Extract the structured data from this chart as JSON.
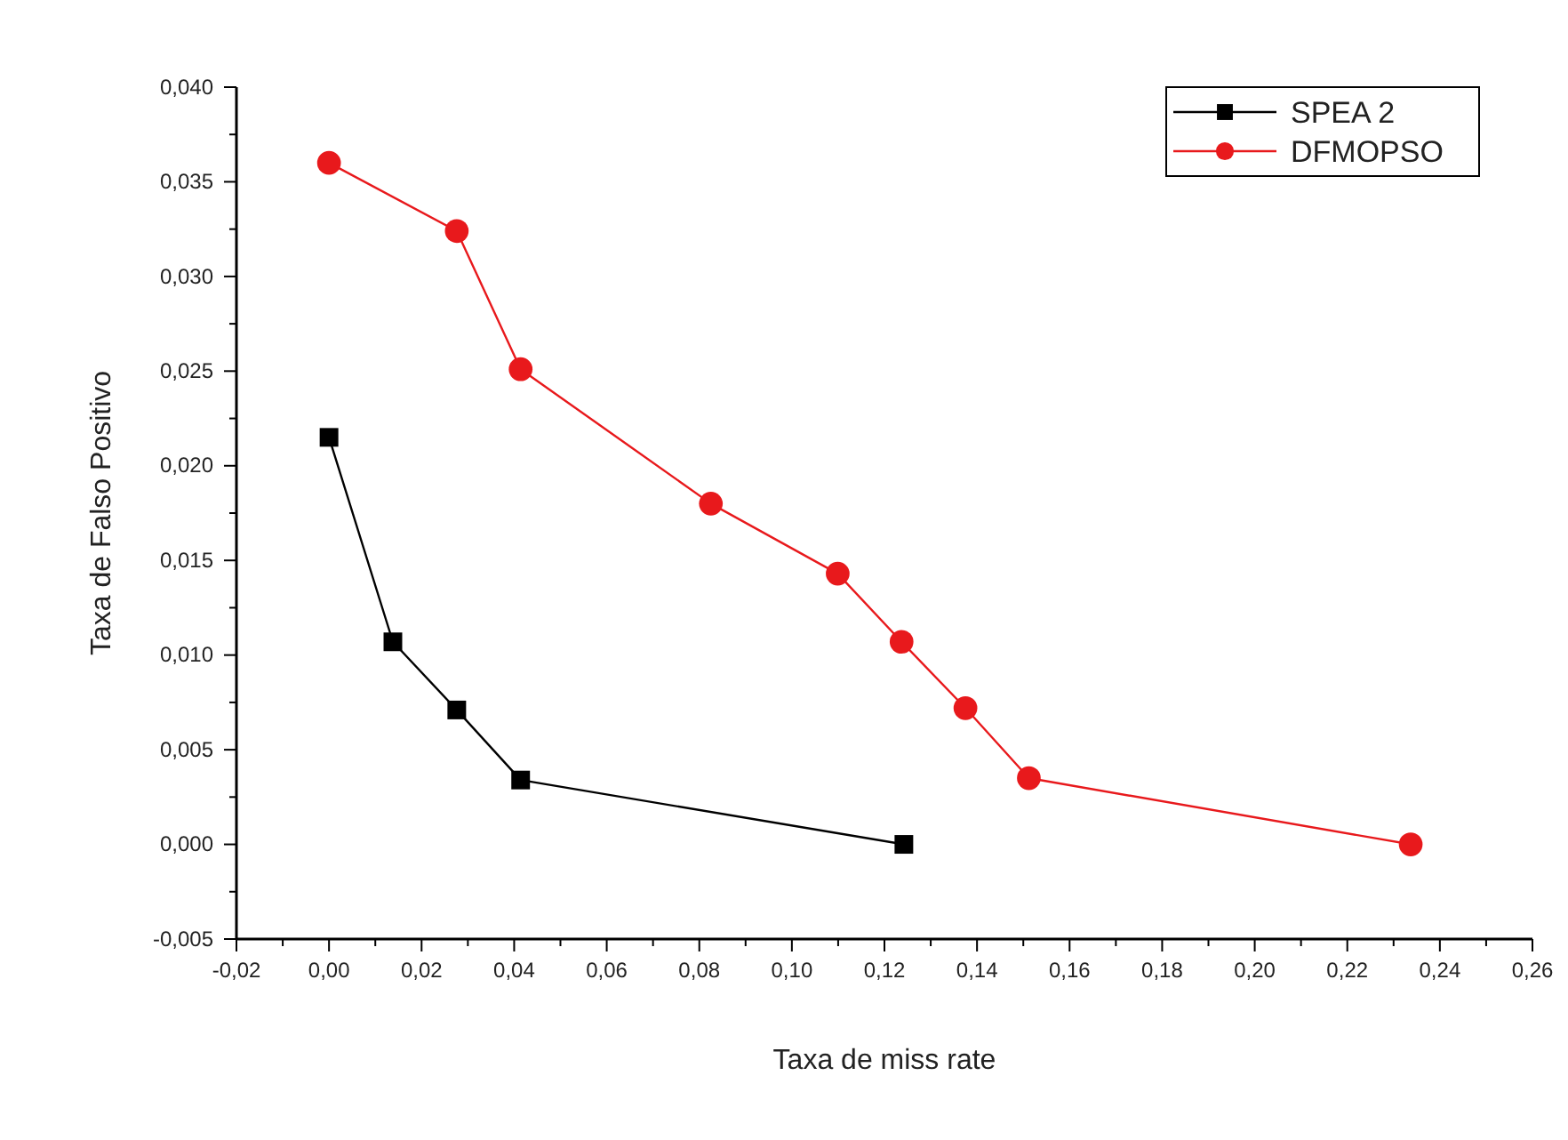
{
  "chart_data": {
    "type": "line",
    "xlabel": "Taxa de miss rate",
    "ylabel": "Taxa de Falso Positivo",
    "xlim": [
      -0.02,
      0.26
    ],
    "ylim": [
      -0.005,
      0.04
    ],
    "xticks": [
      {
        "value": -0.02,
        "label": "-0,02"
      },
      {
        "value": -0.01,
        "label": null
      },
      {
        "value": 0,
        "label": "0,00"
      },
      {
        "value": 0.01,
        "label": null
      },
      {
        "value": 0.02,
        "label": "0,02"
      },
      {
        "value": 0.03,
        "label": null
      },
      {
        "value": 0.04,
        "label": "0,04"
      },
      {
        "value": 0.05,
        "label": null
      },
      {
        "value": 0.06,
        "label": "0,06"
      },
      {
        "value": 0.07,
        "label": null
      },
      {
        "value": 0.08,
        "label": "0,08"
      },
      {
        "value": 0.09,
        "label": null
      },
      {
        "value": 0.1,
        "label": "0,10"
      },
      {
        "value": 0.11,
        "label": null
      },
      {
        "value": 0.12,
        "label": "0,12"
      },
      {
        "value": 0.13,
        "label": null
      },
      {
        "value": 0.14,
        "label": "0,14"
      },
      {
        "value": 0.15,
        "label": null
      },
      {
        "value": 0.16,
        "label": "0,16"
      },
      {
        "value": 0.17,
        "label": null
      },
      {
        "value": 0.18,
        "label": "0,18"
      },
      {
        "value": 0.19,
        "label": null
      },
      {
        "value": 0.2,
        "label": "0,20"
      },
      {
        "value": 0.21,
        "label": null
      },
      {
        "value": 0.22,
        "label": "0,22"
      },
      {
        "value": 0.23,
        "label": null
      },
      {
        "value": 0.24,
        "label": "0,24"
      },
      {
        "value": 0.25,
        "label": null
      },
      {
        "value": 0.26,
        "label": "0,26"
      }
    ],
    "yticks": [
      {
        "value": -0.005,
        "label": "-0,005"
      },
      {
        "value": -0.0025,
        "label": null
      },
      {
        "value": 0,
        "label": "0,000"
      },
      {
        "value": 0.0025,
        "label": null
      },
      {
        "value": 0.005,
        "label": "0,005"
      },
      {
        "value": 0.0075,
        "label": null
      },
      {
        "value": 0.01,
        "label": "0,010"
      },
      {
        "value": 0.0125,
        "label": null
      },
      {
        "value": 0.015,
        "label": "0,015"
      },
      {
        "value": 0.0175,
        "label": null
      },
      {
        "value": 0.02,
        "label": "0,020"
      },
      {
        "value": 0.0225,
        "label": null
      },
      {
        "value": 0.025,
        "label": "0,025"
      },
      {
        "value": 0.0275,
        "label": null
      },
      {
        "value": 0.03,
        "label": "0,030"
      },
      {
        "value": 0.0325,
        "label": null
      },
      {
        "value": 0.035,
        "label": "0,035"
      },
      {
        "value": 0.0375,
        "label": null
      },
      {
        "value": 0.04,
        "label": "0,040"
      }
    ],
    "grid": false,
    "legend": "top right",
    "series": [
      {
        "name": "SPEA 2",
        "color": "#000000",
        "marker": "square",
        "x": [
          0,
          0.0138,
          0.0276,
          0.0414,
          0.1242
        ],
        "values": [
          0.0215,
          0.0107,
          0.0071,
          0.0034,
          0
        ]
      },
      {
        "name": "DFMOPSO",
        "color": "#e8191c",
        "marker": "circle",
        "x": [
          0,
          0.0276,
          0.0414,
          0.0825,
          0.1099,
          0.1237,
          0.1375,
          0.1512,
          0.2337
        ],
        "values": [
          0.036,
          0.0324,
          0.0251,
          0.018,
          0.0143,
          0.0107,
          0.0072,
          0.0035,
          0
        ]
      }
    ]
  }
}
